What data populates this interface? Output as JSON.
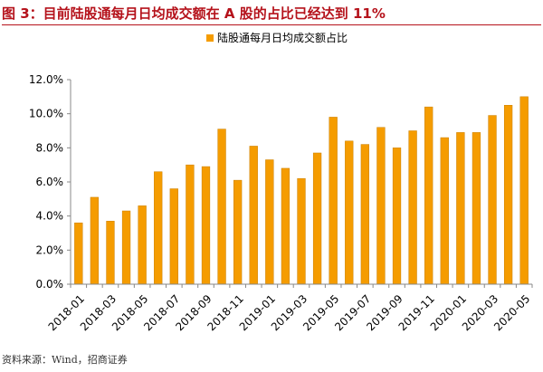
{
  "figure": {
    "title_prefix": "图 3：",
    "title": "目前陆股通每月日均成交额在 A 股的占比已经达到 11%",
    "source": "资料来源：Wind，招商证券"
  },
  "chart_data": {
    "type": "bar",
    "color": "#f59c00",
    "legend_position": "top",
    "grid": false,
    "title": "",
    "xlabel": "",
    "ylabel": "",
    "ylim": [
      0,
      12
    ],
    "y_ticks": [
      "0.0%",
      "2.0%",
      "4.0%",
      "6.0%",
      "8.0%",
      "10.0%",
      "12.0%"
    ],
    "categories": [
      "2018-01",
      "2018-02",
      "2018-03",
      "2018-04",
      "2018-05",
      "2018-06",
      "2018-07",
      "2018-08",
      "2018-09",
      "2018-10",
      "2018-11",
      "2018-12",
      "2019-01",
      "2019-02",
      "2019-03",
      "2019-04",
      "2019-05",
      "2019-06",
      "2019-07",
      "2019-08",
      "2019-09",
      "2019-10",
      "2019-11",
      "2019-12",
      "2020-01",
      "2020-02",
      "2020-03",
      "2020-04",
      "2020-05"
    ],
    "x_tick_labels": [
      "2018-01",
      "",
      "2018-03",
      "",
      "2018-05",
      "",
      "2018-07",
      "",
      "2018-09",
      "",
      "2018-11",
      "",
      "2019-01",
      "",
      "2019-03",
      "",
      "2019-05",
      "",
      "2019-07",
      "",
      "2019-09",
      "",
      "2019-11",
      "",
      "2020-01",
      "",
      "2020-03",
      "",
      "2020-05"
    ],
    "series": [
      {
        "name": "陆股通每月日均成交额占比",
        "values": [
          3.6,
          5.1,
          3.7,
          4.3,
          4.6,
          6.6,
          5.6,
          7.0,
          6.9,
          9.1,
          6.1,
          8.1,
          7.3,
          6.8,
          6.2,
          7.7,
          9.8,
          8.4,
          8.2,
          9.2,
          8.0,
          9.0,
          10.4,
          8.6,
          8.9,
          8.9,
          9.9,
          10.5,
          11.0
        ]
      }
    ]
  }
}
